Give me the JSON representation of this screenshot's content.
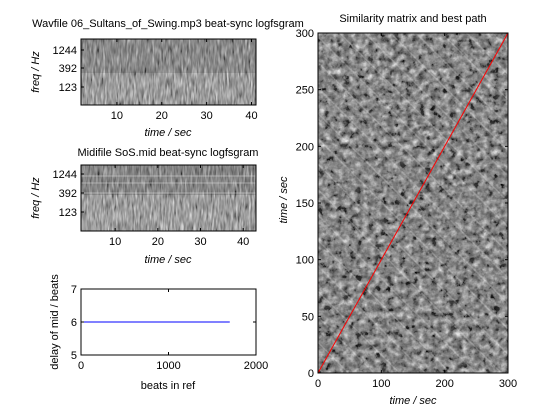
{
  "chart_data": [
    {
      "type": "heatmap",
      "title": "Wavfile 06_Sultans_of_Swing.mp3 beat-sync logfsgram",
      "xlabel": "time / sec",
      "ylabel": "freq / Hz",
      "xlim": [
        2,
        41
      ],
      "xticks": [
        10,
        20,
        30,
        40
      ],
      "yticks": [
        123,
        392,
        1244
      ],
      "colormap": "gray"
    },
    {
      "type": "heatmap",
      "title": "Midifile SoS.mid beat-sync logfsgram",
      "xlabel": "time / sec",
      "ylabel": "freq / Hz",
      "xlim": [
        2,
        43
      ],
      "xticks": [
        10,
        20,
        30,
        40
      ],
      "yticks": [
        123,
        392,
        1244
      ],
      "colormap": "gray"
    },
    {
      "type": "line",
      "xlabel": "beats in ref",
      "ylabel": "delay of mid / beats",
      "xlim": [
        0,
        2000
      ],
      "ylim": [
        5,
        7
      ],
      "xticks": [
        0,
        1000,
        2000
      ],
      "yticks": [
        5,
        6,
        7
      ],
      "series": [
        {
          "color": "#0000ff",
          "x": [
            0,
            1700
          ],
          "y": [
            6,
            6
          ]
        }
      ]
    },
    {
      "type": "heatmap",
      "title": "Similarity matrix and best path",
      "xlabel": "time / sec",
      "ylabel": "time / sec",
      "xlim": [
        0,
        300
      ],
      "ylim": [
        0,
        300
      ],
      "xticks": [
        0,
        100,
        200,
        300
      ],
      "yticks": [
        0,
        50,
        100,
        150,
        200,
        250,
        300
      ],
      "colormap": "gray",
      "path": {
        "color": "#ff0000",
        "x": [
          0,
          300
        ],
        "y": [
          0,
          300
        ]
      }
    }
  ]
}
